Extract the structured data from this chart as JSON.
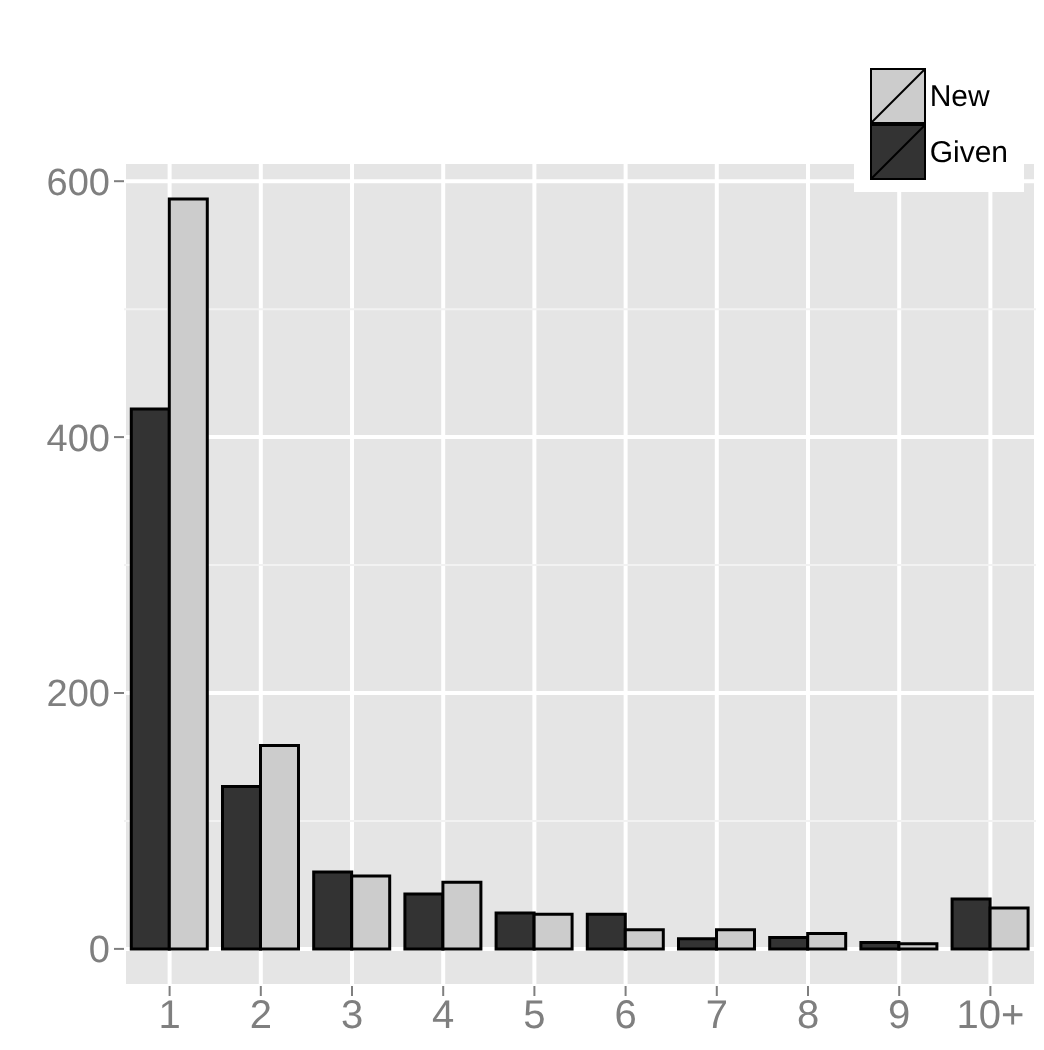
{
  "chart_data": {
    "type": "bar",
    "categories": [
      "1",
      "2",
      "3",
      "4",
      "5",
      "6",
      "7",
      "8",
      "9",
      "10+"
    ],
    "series": [
      {
        "name": "Given",
        "color": "#333333",
        "values": [
          422,
          127,
          60,
          43,
          28,
          27,
          8,
          9,
          5,
          39
        ]
      },
      {
        "name": "New",
        "color": "#cccccc",
        "values": [
          586,
          159,
          57,
          52,
          27,
          15,
          15,
          12,
          4,
          32
        ]
      }
    ],
    "ylim": [
      -29,
      615
    ],
    "yticks": [
      0,
      200,
      400,
      600
    ],
    "grid": true,
    "legend": "top right"
  }
}
